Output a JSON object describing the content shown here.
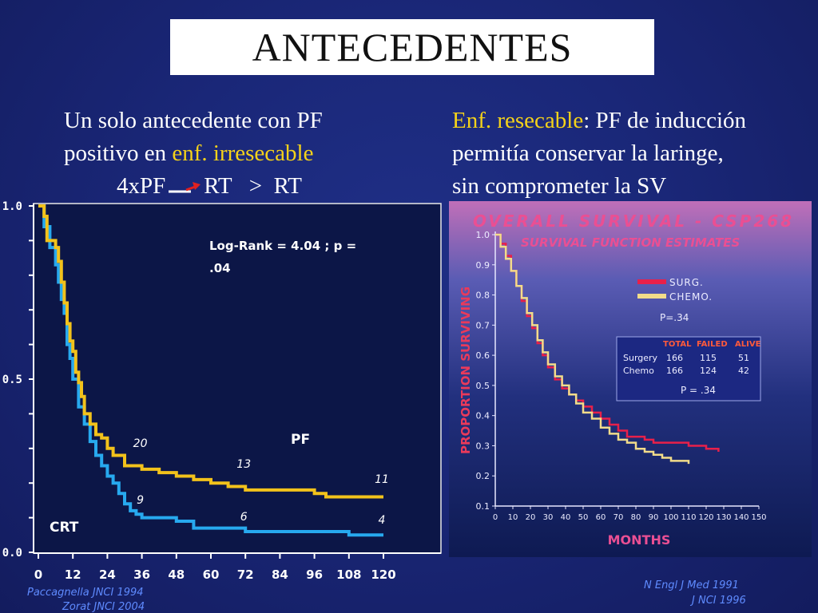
{
  "title": "ANTECEDENTES",
  "left_text": {
    "line1": "Un solo antecedente con PF",
    "line2_prefix": "positivo en ",
    "line2_highlight": "enf. irresecable",
    "line3_left": "4xPF",
    "line3_right": "RT   >  RT"
  },
  "right_text": {
    "line1_highlight": "Enf. resecable",
    "line1_rest": ": PF de inducción",
    "line2": "permitía conservar la laringe,",
    "line3": "sin comprometer la SV"
  },
  "citations_left": [
    "Paccagnella JNCI 1994",
    "Zorat JNCI 2004"
  ],
  "citations_right": [
    "N Engl J Med 1991",
    "J NCI 1996"
  ],
  "colors": {
    "pf": "#f2c21b",
    "crt": "#27a9ef",
    "surg": "#e8204a",
    "chemo": "#f2dc8a"
  },
  "chart_data": [
    {
      "type": "line",
      "title": "",
      "xlabel": "",
      "ylabel": "",
      "xlim": [
        0,
        120
      ],
      "ylim": [
        0.0,
        1.0
      ],
      "x_ticks": [
        "0",
        "12",
        "24",
        "36",
        "48",
        "60",
        "72",
        "84",
        "96",
        "108",
        "120"
      ],
      "y_ticks": [
        "1.0",
        "0.5",
        "0.0"
      ],
      "annotation": "Log-Rank = 4.04 ; p = .04",
      "series": [
        {
          "name": "PF",
          "at_risk": [
            {
              "x": 36,
              "label": "20"
            },
            {
              "x": 72,
              "label": "13"
            },
            {
              "x": 120,
              "label": "11"
            }
          ],
          "points": [
            [
              0,
              1.0
            ],
            [
              2,
              0.97
            ],
            [
              3,
              0.9
            ],
            [
              6,
              0.88
            ],
            [
              7,
              0.84
            ],
            [
              8,
              0.78
            ],
            [
              9,
              0.72
            ],
            [
              10,
              0.66
            ],
            [
              11,
              0.61
            ],
            [
              12,
              0.58
            ],
            [
              13,
              0.52
            ],
            [
              14,
              0.49
            ],
            [
              15,
              0.45
            ],
            [
              16,
              0.4
            ],
            [
              18,
              0.37
            ],
            [
              20,
              0.34
            ],
            [
              22,
              0.33
            ],
            [
              24,
              0.3
            ],
            [
              26,
              0.28
            ],
            [
              28,
              0.28
            ],
            [
              30,
              0.25
            ],
            [
              36,
              0.24
            ],
            [
              42,
              0.23
            ],
            [
              48,
              0.22
            ],
            [
              54,
              0.21
            ],
            [
              60,
              0.2
            ],
            [
              66,
              0.19
            ],
            [
              72,
              0.18
            ],
            [
              84,
              0.18
            ],
            [
              96,
              0.17
            ],
            [
              100,
              0.16
            ],
            [
              120,
              0.16
            ]
          ]
        },
        {
          "name": "CRT",
          "at_risk": [
            {
              "x": 36,
              "label": "9"
            },
            {
              "x": 72,
              "label": "6"
            },
            {
              "x": 120,
              "label": "4"
            }
          ],
          "points": [
            [
              0,
              1.0
            ],
            [
              2,
              0.94
            ],
            [
              4,
              0.88
            ],
            [
              6,
              0.83
            ],
            [
              7,
              0.78
            ],
            [
              8,
              0.73
            ],
            [
              9,
              0.69
            ],
            [
              10,
              0.6
            ],
            [
              11,
              0.56
            ],
            [
              12,
              0.5
            ],
            [
              14,
              0.42
            ],
            [
              16,
              0.37
            ],
            [
              18,
              0.32
            ],
            [
              20,
              0.28
            ],
            [
              22,
              0.25
            ],
            [
              24,
              0.22
            ],
            [
              26,
              0.2
            ],
            [
              28,
              0.17
            ],
            [
              30,
              0.14
            ],
            [
              32,
              0.12
            ],
            [
              34,
              0.11
            ],
            [
              36,
              0.1
            ],
            [
              42,
              0.1
            ],
            [
              48,
              0.09
            ],
            [
              54,
              0.07
            ],
            [
              60,
              0.07
            ],
            [
              72,
              0.06
            ],
            [
              96,
              0.06
            ],
            [
              108,
              0.05
            ],
            [
              120,
              0.05
            ]
          ]
        }
      ],
      "labels": {
        "pf": "PF",
        "crt": "CRT"
      }
    },
    {
      "type": "line",
      "title": "OVERALL SURVIVAL - CSP268",
      "subtitle": "SURVIVAL FUNCTION ESTIMATES",
      "xlabel": "MONTHS",
      "ylabel": "PROPORTION SURVIVING",
      "xlim": [
        0,
        150
      ],
      "ylim": [
        0.1,
        1.0
      ],
      "x_ticks": [
        "0",
        "10",
        "20",
        "30",
        "40",
        "50",
        "60",
        "70",
        "80",
        "90",
        "100",
        "110",
        "120",
        "130",
        "140",
        "150"
      ],
      "y_ticks": [
        "1.0",
        "0.9",
        "0.8",
        "0.7",
        "0.6",
        "0.5",
        "0.4",
        "0.3",
        "0.2",
        "0.1"
      ],
      "legend": [
        {
          "name": "SURG."
        },
        {
          "name": "CHEMO."
        }
      ],
      "p_value_label": "P=.34",
      "table": {
        "headers": [
          "",
          "TOTAL",
          "FAILED",
          "ALIVE"
        ],
        "rows": [
          [
            "Surgery",
            "166",
            "115",
            "51"
          ],
          [
            "Chemo",
            "166",
            "124",
            "42"
          ]
        ],
        "footer": "P = .34"
      },
      "series": [
        {
          "name": "SURG.",
          "points": [
            [
              0,
              1.0
            ],
            [
              3,
              0.97
            ],
            [
              6,
              0.93
            ],
            [
              9,
              0.88
            ],
            [
              12,
              0.83
            ],
            [
              15,
              0.78
            ],
            [
              18,
              0.73
            ],
            [
              21,
              0.69
            ],
            [
              24,
              0.64
            ],
            [
              27,
              0.6
            ],
            [
              30,
              0.56
            ],
            [
              34,
              0.52
            ],
            [
              38,
              0.49
            ],
            [
              42,
              0.47
            ],
            [
              46,
              0.45
            ],
            [
              50,
              0.43
            ],
            [
              55,
              0.41
            ],
            [
              60,
              0.39
            ],
            [
              65,
              0.37
            ],
            [
              70,
              0.35
            ],
            [
              75,
              0.33
            ],
            [
              80,
              0.33
            ],
            [
              85,
              0.32
            ],
            [
              90,
              0.31
            ],
            [
              100,
              0.31
            ],
            [
              110,
              0.3
            ],
            [
              120,
              0.29
            ],
            [
              127,
              0.28
            ]
          ]
        },
        {
          "name": "CHEMO.",
          "points": [
            [
              0,
              1.0
            ],
            [
              3,
              0.96
            ],
            [
              6,
              0.92
            ],
            [
              9,
              0.88
            ],
            [
              12,
              0.83
            ],
            [
              15,
              0.79
            ],
            [
              18,
              0.74
            ],
            [
              21,
              0.7
            ],
            [
              24,
              0.65
            ],
            [
              27,
              0.61
            ],
            [
              30,
              0.57
            ],
            [
              34,
              0.53
            ],
            [
              38,
              0.5
            ],
            [
              42,
              0.47
            ],
            [
              46,
              0.44
            ],
            [
              50,
              0.41
            ],
            [
              55,
              0.39
            ],
            [
              60,
              0.36
            ],
            [
              65,
              0.34
            ],
            [
              70,
              0.32
            ],
            [
              75,
              0.31
            ],
            [
              80,
              0.29
            ],
            [
              85,
              0.28
            ],
            [
              90,
              0.27
            ],
            [
              95,
              0.26
            ],
            [
              100,
              0.25
            ],
            [
              105,
              0.25
            ],
            [
              110,
              0.24
            ]
          ]
        }
      ]
    }
  ]
}
